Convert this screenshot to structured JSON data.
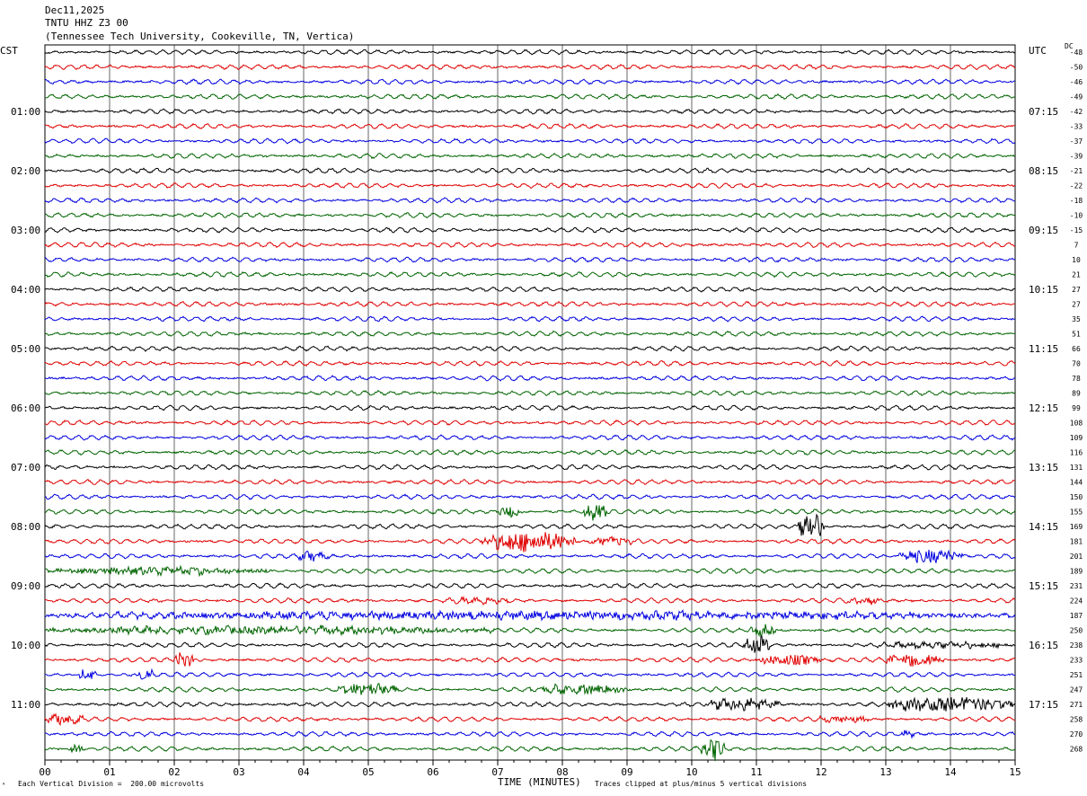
{
  "header": {
    "date": "Dec11,2025",
    "station": "TNTU HHZ Z3 00",
    "location": "(Tennessee Tech University, Cookeville, TN, Vertica)"
  },
  "left_axis_title": "CST",
  "right_axis_title": "UTC",
  "dc_title": "DC",
  "footer": {
    "scale": "Each Vertical Division =  200.00 microvolts",
    "clip": "Traces clipped at plus/minus 5 vertical divisions",
    "glyph": "ᴬ"
  },
  "colors": {
    "trace_cycle": [
      "#000000",
      "#e00000",
      "#0000e0",
      "#006400"
    ],
    "grid": "#000000",
    "background": "#ffffff"
  },
  "chart_data": {
    "type": "helicorder",
    "xlabel": "TIME (MINUTES)",
    "xlim": [
      0,
      15
    ],
    "x_ticks": [
      "00",
      "01",
      "02",
      "03",
      "04",
      "05",
      "06",
      "07",
      "08",
      "09",
      "10",
      "11",
      "12",
      "13",
      "14",
      "15"
    ],
    "rows_per_hour": 4,
    "minutes_per_row": 15,
    "cst_hour_labels": [
      "01:00",
      "02:00",
      "03:00",
      "04:00",
      "05:00",
      "06:00",
      "07:00",
      "08:00",
      "09:00",
      "10:00",
      "11:00"
    ],
    "utc_hour_labels": [
      "07:15",
      "08:15",
      "09:15",
      "10:15",
      "11:15",
      "12:15",
      "13:15",
      "14:15",
      "15:15",
      "16:15",
      "17:15"
    ],
    "first_label_row": 4,
    "dc_offsets": [
      -48,
      -50,
      -46,
      -49,
      -42,
      -33,
      -37,
      -39,
      -21,
      -22,
      -18,
      -10,
      -15,
      7,
      10,
      21,
      27,
      27,
      35,
      51,
      66,
      70,
      78,
      89,
      99,
      108,
      109,
      116,
      131,
      144,
      150,
      155,
      169,
      181,
      201,
      189,
      231,
      224,
      187,
      250,
      238,
      233,
      251,
      247,
      271,
      258,
      270,
      268
    ],
    "events": [
      {
        "row": 33,
        "x_start": 6.75,
        "x_end": 8.2,
        "amplitude": 11
      },
      {
        "row": 33,
        "x_start": 8.4,
        "x_end": 9.1,
        "amplitude": 4
      },
      {
        "row": 31,
        "x_start": 7.0,
        "x_end": 7.4,
        "amplitude": 6
      },
      {
        "row": 31,
        "x_start": 8.3,
        "x_end": 8.7,
        "amplitude": 9
      },
      {
        "row": 32,
        "x_start": 11.65,
        "x_end": 12.05,
        "amplitude": 18
      },
      {
        "row": 34,
        "x_start": 13.2,
        "x_end": 14.2,
        "amplitude": 8
      },
      {
        "row": 34,
        "x_start": 3.9,
        "x_end": 4.4,
        "amplitude": 4
      },
      {
        "row": 35,
        "x_start": 0.0,
        "x_end": 3.5,
        "amplitude": 4
      },
      {
        "row": 37,
        "x_start": 6.2,
        "x_end": 7.2,
        "amplitude": 3
      },
      {
        "row": 37,
        "x_start": 12.4,
        "x_end": 12.9,
        "amplitude": 4
      },
      {
        "row": 38,
        "x_start": 0.0,
        "x_end": 15.0,
        "amplitude": 4
      },
      {
        "row": 39,
        "x_start": 0.0,
        "x_end": 7.0,
        "amplitude": 4
      },
      {
        "row": 39,
        "x_start": 10.9,
        "x_end": 11.3,
        "amplitude": 6
      },
      {
        "row": 40,
        "x_start": 10.8,
        "x_end": 11.2,
        "amplitude": 10
      },
      {
        "row": 40,
        "x_start": 12.8,
        "x_end": 15.0,
        "amplitude": 3
      },
      {
        "row": 41,
        "x_start": 2.0,
        "x_end": 2.3,
        "amplitude": 9
      },
      {
        "row": 41,
        "x_start": 11.0,
        "x_end": 12.0,
        "amplitude": 6
      },
      {
        "row": 41,
        "x_start": 13.0,
        "x_end": 13.9,
        "amplitude": 7
      },
      {
        "row": 42,
        "x_start": 0.5,
        "x_end": 0.8,
        "amplitude": 6
      },
      {
        "row": 42,
        "x_start": 1.4,
        "x_end": 1.7,
        "amplitude": 7
      },
      {
        "row": 43,
        "x_start": 4.5,
        "x_end": 5.5,
        "amplitude": 6
      },
      {
        "row": 43,
        "x_start": 7.5,
        "x_end": 9.0,
        "amplitude": 5
      },
      {
        "row": 44,
        "x_start": 10.2,
        "x_end": 11.4,
        "amplitude": 6
      },
      {
        "row": 44,
        "x_start": 13.0,
        "x_end": 15.0,
        "amplitude": 8
      },
      {
        "row": 45,
        "x_start": 0.0,
        "x_end": 0.6,
        "amplitude": 6
      },
      {
        "row": 45,
        "x_start": 11.9,
        "x_end": 12.8,
        "amplitude": 3
      },
      {
        "row": 46,
        "x_start": 13.2,
        "x_end": 13.5,
        "amplitude": 3
      },
      {
        "row": 47,
        "x_start": 10.15,
        "x_end": 10.5,
        "amplitude": 14
      },
      {
        "row": 47,
        "x_start": 0.35,
        "x_end": 0.6,
        "amplitude": 5
      }
    ]
  }
}
